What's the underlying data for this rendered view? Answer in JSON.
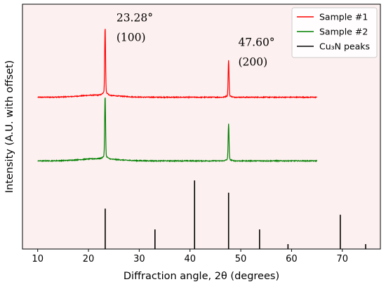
{
  "chart_data": {
    "type": "line",
    "xlabel": "Diffraction angle, 2θ (degrees)",
    "ylabel": "Intensity (A.U. with offset)",
    "xlim": [
      7.0,
      77.5
    ],
    "ylim": [
      0,
      100
    ],
    "x_ticks": [
      10,
      20,
      30,
      40,
      50,
      60,
      70
    ],
    "y_ticks_shown": false,
    "grid": false,
    "background": "#fdf0f0",
    "legend_position": "top-right",
    "series": [
      {
        "name": "Sample #1",
        "color": "#ff0000",
        "kind": "xrd-pattern",
        "x_range": [
          10,
          65
        ],
        "offset": 62,
        "baseline": 0,
        "peaks": [
          {
            "x": 23.28,
            "height": 26.5
          },
          {
            "x": 47.6,
            "height": 14.5
          }
        ]
      },
      {
        "name": "Sample #2",
        "color": "#008000",
        "kind": "xrd-pattern",
        "x_range": [
          10,
          65
        ],
        "offset": 36,
        "baseline": 0,
        "peaks": [
          {
            "x": 23.28,
            "height": 24.5
          },
          {
            "x": 47.6,
            "height": 14.5
          }
        ]
      },
      {
        "name": "Cu₃N peaks",
        "color": "#000000",
        "kind": "stick",
        "x": [
          23.3,
          33.1,
          40.9,
          47.6,
          53.7,
          59.3,
          69.6,
          74.6
        ],
        "values": [
          16.5,
          8.0,
          28.0,
          23.0,
          8.0,
          2.0,
          14.0,
          2.0
        ]
      }
    ],
    "annotations": [
      {
        "text": "23.28°",
        "x": 25.5,
        "y": 93
      },
      {
        "text": "(100)",
        "x": 25.5,
        "y": 85
      },
      {
        "text": "47.60°",
        "x": 49.5,
        "y": 83
      },
      {
        "text": "(200)",
        "x": 49.5,
        "y": 75
      }
    ]
  }
}
